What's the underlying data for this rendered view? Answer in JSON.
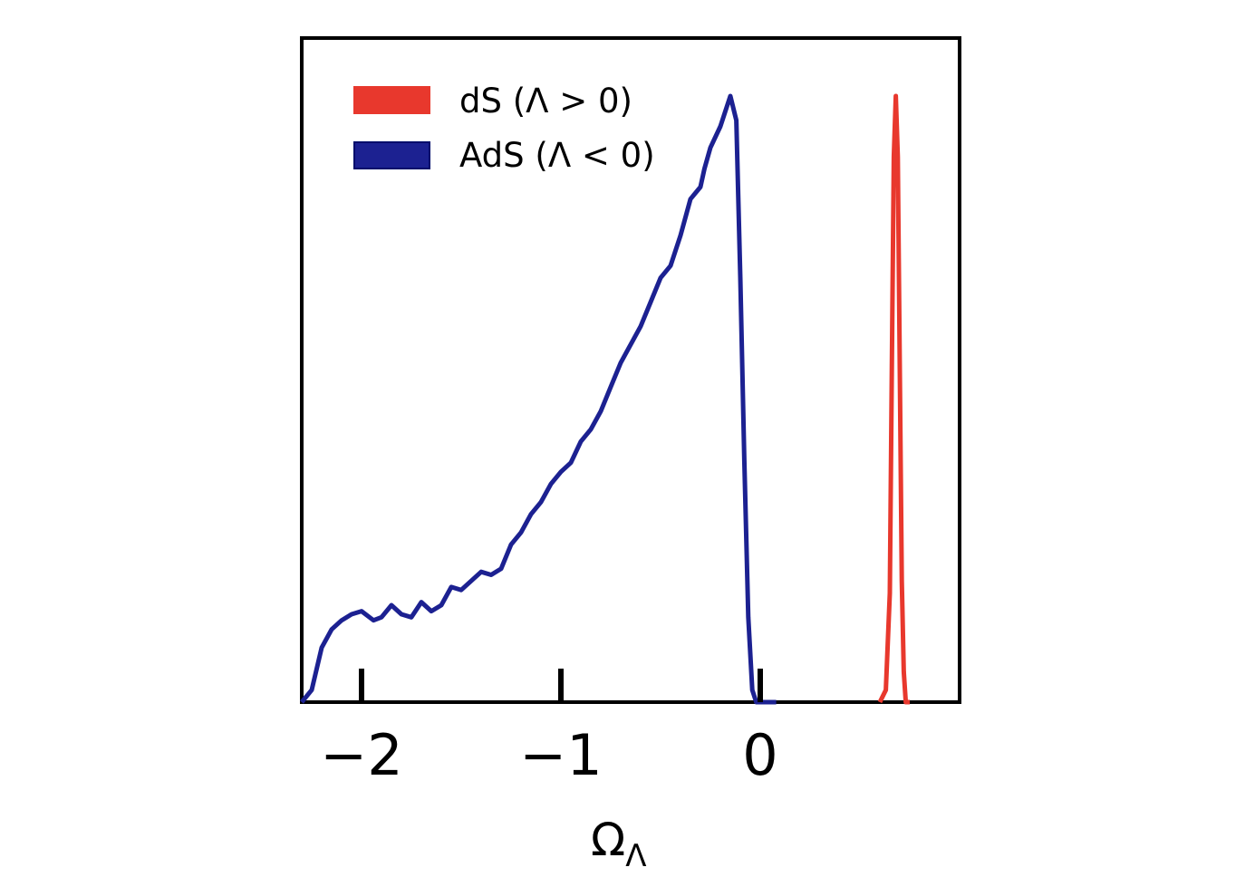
{
  "chart_data": {
    "type": "line",
    "xlabel": {
      "main": "Ω",
      "sub": "Λ"
    },
    "ylabel": "",
    "xlim": [
      -2.3,
      1.0
    ],
    "ylim": [
      0,
      1.0
    ],
    "xticks": [
      -2,
      -1,
      0
    ],
    "xtick_labels": [
      "−2",
      "−1",
      "0"
    ],
    "yticks": [],
    "grid": false,
    "legend_position": "top-left",
    "colors": {
      "dS": "#e8382d",
      "AdS": "#1c2191",
      "frame": "#000000"
    },
    "series": [
      {
        "name": "dS (Λ > 0)",
        "key": "dS",
        "x": [
          0.6,
          0.63,
          0.65,
          0.66,
          0.67,
          0.68,
          0.69,
          0.7,
          0.71,
          0.72,
          0.73,
          0.75
        ],
        "y": [
          0.0,
          0.02,
          0.18,
          0.55,
          0.9,
          1.0,
          0.9,
          0.55,
          0.2,
          0.05,
          0.0,
          0.0
        ]
      },
      {
        "name": "AdS (Λ < 0)",
        "key": "AdS",
        "x": [
          -2.3,
          -2.25,
          -2.2,
          -2.15,
          -2.1,
          -2.05,
          -2.0,
          -1.94,
          -1.9,
          -1.85,
          -1.8,
          -1.75,
          -1.7,
          -1.65,
          -1.6,
          -1.55,
          -1.5,
          -1.45,
          -1.4,
          -1.35,
          -1.3,
          -1.25,
          -1.2,
          -1.15,
          -1.1,
          -1.05,
          -1.0,
          -0.95,
          -0.9,
          -0.85,
          -0.8,
          -0.75,
          -0.7,
          -0.65,
          -0.6,
          -0.55,
          -0.5,
          -0.45,
          -0.4,
          -0.35,
          -0.3,
          -0.28,
          -0.25,
          -0.2,
          -0.17,
          -0.15,
          -0.12,
          -0.1,
          -0.08,
          -0.06,
          -0.04,
          -0.02,
          0.0,
          0.02,
          0.04,
          0.06,
          0.08
        ],
        "y": [
          0.0,
          0.02,
          0.09,
          0.12,
          0.135,
          0.145,
          0.15,
          0.135,
          0.14,
          0.16,
          0.145,
          0.14,
          0.165,
          0.15,
          0.16,
          0.19,
          0.185,
          0.2,
          0.215,
          0.21,
          0.22,
          0.26,
          0.28,
          0.31,
          0.33,
          0.36,
          0.38,
          0.395,
          0.43,
          0.45,
          0.48,
          0.52,
          0.56,
          0.59,
          0.62,
          0.66,
          0.7,
          0.72,
          0.77,
          0.83,
          0.85,
          0.88,
          0.915,
          0.95,
          0.98,
          1.0,
          0.96,
          0.7,
          0.4,
          0.14,
          0.02,
          0.0,
          0.0,
          0.0,
          0.0,
          0.0,
          0.0
        ]
      }
    ]
  }
}
